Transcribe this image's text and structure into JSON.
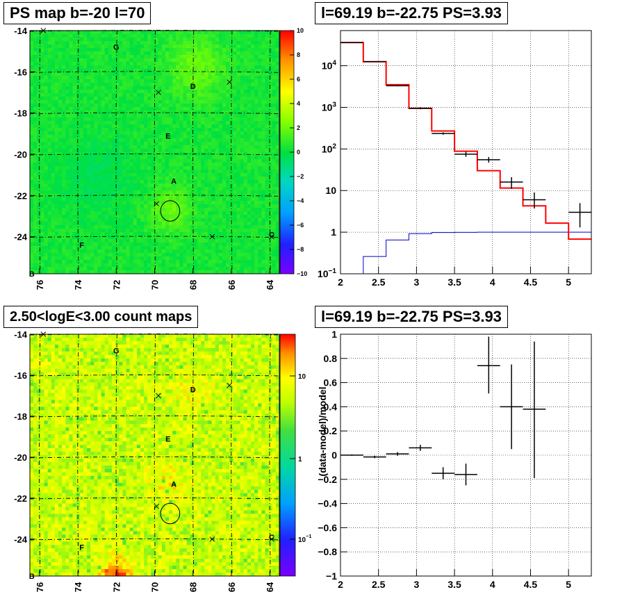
{
  "chart_data": [
    {
      "type": "heatmap",
      "title": "PS map b=-20 l=70",
      "x_ticks": [
        "76",
        "74",
        "72",
        "70",
        "68",
        "66",
        "64"
      ],
      "y_ticks": [
        "-14",
        "-16",
        "-18",
        "-20",
        "-22",
        "-24"
      ],
      "xlim": [
        76.5,
        63.5
      ],
      "ylim": [
        -25.8,
        -14
      ],
      "colorbar_ticks": [
        "10",
        "8",
        "6",
        "4",
        "2",
        "0",
        "−2",
        "−4",
        "−6",
        "−8",
        "−10"
      ],
      "colorbar_range": [
        -10,
        10
      ],
      "labels": [
        {
          "text": "G",
          "l": 72,
          "b": -14.8
        },
        {
          "text": "D",
          "l": 68,
          "b": -16.7
        },
        {
          "text": "E",
          "l": 69.3,
          "b": -19.1
        },
        {
          "text": "A",
          "l": 69,
          "b": -21.3
        },
        {
          "text": "F",
          "l": 73.8,
          "b": -24.4
        },
        {
          "text": "C",
          "l": 63.9,
          "b": -23.9
        },
        {
          "text": "B",
          "l": 76.4,
          "b": -25.8
        }
      ],
      "crosses": [
        {
          "l": 75.8,
          "b": -14.0
        },
        {
          "l": 69.8,
          "b": -17.0
        },
        {
          "l": 66.1,
          "b": -16.5
        },
        {
          "l": 69.9,
          "b": -22.4
        },
        {
          "l": 67.0,
          "b": -24.0
        },
        {
          "l": 63.9,
          "b": -24.0
        }
      ],
      "circle": {
        "l": 69.19,
        "b": -22.75,
        "r": 0.5
      }
    },
    {
      "type": "line",
      "title": "l=69.19 b=-22.75 PS=3.93",
      "xlabel": "",
      "ylabel": "",
      "xlim": [
        2,
        5.3
      ],
      "ylim": [
        0.1,
        70000
      ],
      "y_scale": "log",
      "x_ticks": [
        "2",
        "2.5",
        "3",
        "3.5",
        "4",
        "4.5",
        "5"
      ],
      "y_ticks": [
        {
          "value": 0.1,
          "base": "10",
          "exp": "−1"
        },
        {
          "value": 1,
          "base": "1",
          "exp": ""
        },
        {
          "value": 10,
          "base": "10",
          "exp": ""
        },
        {
          "value": 100,
          "base": "10",
          "exp": "2"
        },
        {
          "value": 1000,
          "base": "10",
          "exp": "3"
        },
        {
          "value": 10000,
          "base": "10",
          "exp": "4"
        }
      ],
      "model_total_bins": [
        2.0,
        2.3,
        2.6,
        2.9,
        3.2,
        3.5,
        3.8,
        4.1,
        4.4,
        4.7,
        5.0,
        5.3
      ],
      "model_total": [
        36000,
        12500,
        3500,
        950,
        270,
        88,
        30,
        11.5,
        4.3,
        1.65,
        0.68
      ],
      "model_source_bins": [
        2.0,
        2.3,
        2.6,
        2.9,
        3.2,
        3.5,
        3.8,
        4.1,
        4.4,
        4.7,
        5.0,
        5.3
      ],
      "model_source": [
        0.03,
        0.26,
        0.65,
        0.92,
        0.98,
        0.99,
        1.0,
        1.0,
        1.0,
        1.0,
        1.0
      ],
      "data_points": [
        {
          "x": 2.15,
          "xerr": 0.15,
          "y": 36000,
          "ylo": 36000,
          "yhi": 36000
        },
        {
          "x": 2.45,
          "xerr": 0.15,
          "y": 12500,
          "ylo": 12500,
          "yhi": 12500
        },
        {
          "x": 2.75,
          "xerr": 0.15,
          "y": 3300,
          "ylo": 3200,
          "yhi": 3400
        },
        {
          "x": 3.05,
          "xerr": 0.15,
          "y": 950,
          "ylo": 900,
          "yhi": 1000
        },
        {
          "x": 3.35,
          "xerr": 0.15,
          "y": 235,
          "ylo": 220,
          "yhi": 250
        },
        {
          "x": 3.65,
          "xerr": 0.15,
          "y": 75,
          "ylo": 65,
          "yhi": 85
        },
        {
          "x": 3.95,
          "xerr": 0.15,
          "y": 55,
          "ylo": 47,
          "yhi": 64
        },
        {
          "x": 4.25,
          "xerr": 0.15,
          "y": 16,
          "ylo": 11,
          "yhi": 21
        },
        {
          "x": 4.55,
          "xerr": 0.15,
          "y": 6,
          "ylo": 3.7,
          "yhi": 9
        },
        {
          "x": 5.15,
          "xerr": 0.15,
          "y": 3,
          "ylo": 1.3,
          "yhi": 5
        }
      ],
      "colors": {
        "total": "#ff0000",
        "source": "#0000cc",
        "data": "#000000"
      }
    },
    {
      "type": "heatmap",
      "title": "2.50<logE<3.00 count maps",
      "x_ticks": [
        "76",
        "74",
        "72",
        "70",
        "68",
        "66",
        "64"
      ],
      "y_ticks": [
        "-14",
        "-16",
        "-18",
        "-20",
        "-22",
        "-24"
      ],
      "xlim": [
        76.5,
        63.5
      ],
      "ylim": [
        -25.8,
        -14
      ],
      "colorbar_scale": "log",
      "colorbar_ticks": [
        {
          "base": "10",
          "exp": ""
        },
        {
          "base": "1",
          "exp": ""
        },
        {
          "base": "10",
          "exp": "−1"
        }
      ],
      "labels": [
        {
          "text": "G",
          "l": 72,
          "b": -14.8
        },
        {
          "text": "D",
          "l": 68,
          "b": -16.7
        },
        {
          "text": "E",
          "l": 69.3,
          "b": -19.1
        },
        {
          "text": "A",
          "l": 69,
          "b": -21.3
        },
        {
          "text": "F",
          "l": 73.8,
          "b": -24.4
        },
        {
          "text": "C",
          "l": 63.9,
          "b": -23.9
        },
        {
          "text": "B",
          "l": 76.4,
          "b": -25.8
        }
      ],
      "crosses": [
        {
          "l": 75.8,
          "b": -14.0
        },
        {
          "l": 69.8,
          "b": -17.0
        },
        {
          "l": 66.1,
          "b": -16.5
        },
        {
          "l": 69.9,
          "b": -22.4
        },
        {
          "l": 67.0,
          "b": -24.0
        },
        {
          "l": 63.9,
          "b": -24.0
        }
      ],
      "circle": {
        "l": 69.19,
        "b": -22.75,
        "r": 0.5
      }
    },
    {
      "type": "scatter",
      "title": "l=69.19 b=-22.75 PS=3.93",
      "ylabel": "(data-model)/model",
      "xlim": [
        2,
        5.3
      ],
      "ylim": [
        -1,
        1
      ],
      "x_ticks": [
        "2",
        "2.5",
        "3",
        "3.5",
        "4",
        "4.5",
        "5"
      ],
      "y_ticks": [
        "1",
        "0.8",
        "0.6",
        "0.4",
        "0.2",
        "0",
        "−0.2",
        "−0.4",
        "−0.6",
        "−0.8",
        "−1"
      ],
      "points": [
        {
          "x": 2.15,
          "xerr": 0.15,
          "y": 0.0,
          "ylo": -0.005,
          "yhi": 0.005
        },
        {
          "x": 2.45,
          "xerr": 0.15,
          "y": -0.015,
          "ylo": -0.025,
          "yhi": -0.005
        },
        {
          "x": 2.75,
          "xerr": 0.15,
          "y": 0.01,
          "ylo": -0.005,
          "yhi": 0.025
        },
        {
          "x": 3.05,
          "xerr": 0.15,
          "y": 0.06,
          "ylo": 0.035,
          "yhi": 0.085
        },
        {
          "x": 3.35,
          "xerr": 0.15,
          "y": -0.15,
          "ylo": -0.2,
          "yhi": -0.1
        },
        {
          "x": 3.65,
          "xerr": 0.15,
          "y": -0.16,
          "ylo": -0.25,
          "yhi": -0.07
        },
        {
          "x": 3.95,
          "xerr": 0.15,
          "y": 0.74,
          "ylo": 0.51,
          "yhi": 0.98
        },
        {
          "x": 4.25,
          "xerr": 0.15,
          "y": 0.4,
          "ylo": 0.05,
          "yhi": 0.75
        },
        {
          "x": 4.55,
          "xerr": 0.15,
          "y": 0.38,
          "ylo": -0.19,
          "yhi": 0.94
        }
      ]
    }
  ]
}
